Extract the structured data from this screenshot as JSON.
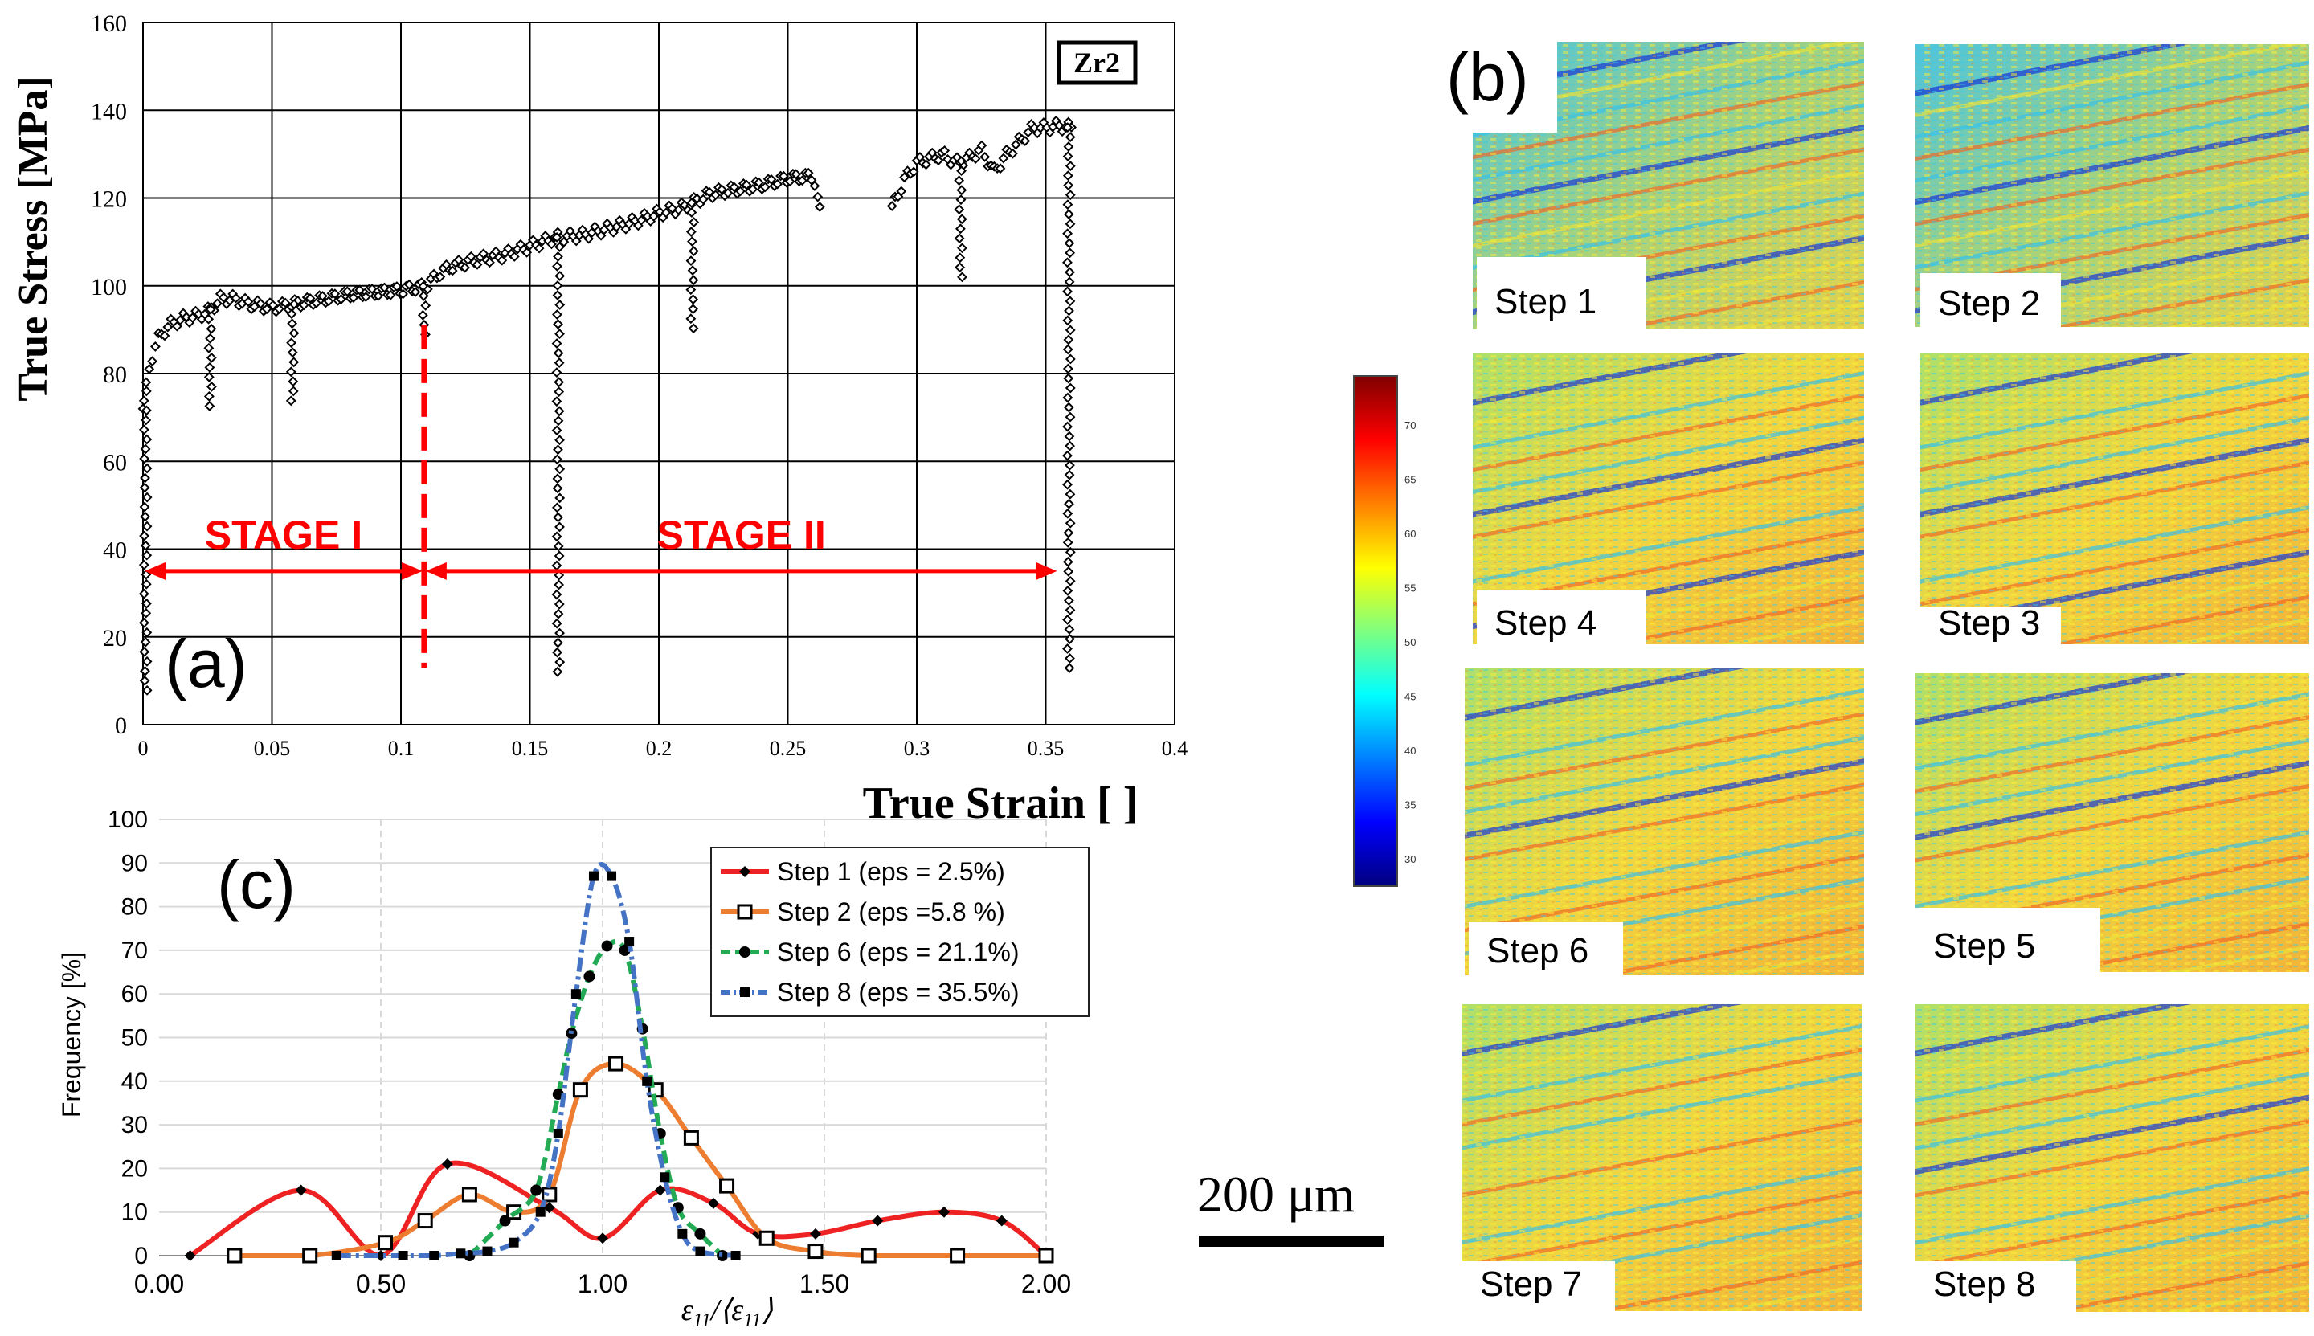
{
  "chart_data": [
    {
      "panel": "(a)",
      "type": "scatter",
      "xlabel": "True Strain [ ]",
      "ylabel": "True Stress [MPa]",
      "xlim": [
        0,
        0.4
      ],
      "ylim": [
        0,
        160
      ],
      "xticks": [
        0,
        0.05,
        0.1,
        0.15,
        0.2,
        0.25,
        0.3,
        0.35,
        0.4
      ],
      "xtick_labels": [
        "0",
        "0.05",
        "0.1",
        "0.15",
        "0.2",
        "0.25",
        "0.3",
        "0.35",
        "0.4"
      ],
      "yticks": [
        0,
        20,
        40,
        60,
        80,
        100,
        120,
        140,
        160
      ],
      "ytick_labels": [
        "0",
        "20",
        "40",
        "60",
        "80",
        "100",
        "120",
        "140",
        "160"
      ],
      "grid": true,
      "legend_box": "Zr2",
      "curve": {
        "x": [
          0.0,
          0.002,
          0.004,
          0.006,
          0.01,
          0.015,
          0.02,
          0.025,
          0.03,
          0.035,
          0.04,
          0.05,
          0.06,
          0.07,
          0.08,
          0.09,
          0.1,
          0.105,
          0.11,
          0.115,
          0.12,
          0.13,
          0.14,
          0.15,
          0.16,
          0.17,
          0.18,
          0.19,
          0.2,
          0.21,
          0.22,
          0.23,
          0.24,
          0.25,
          0.26,
          0.262,
          0.29,
          0.295,
          0.3,
          0.305,
          0.31,
          0.315,
          0.32,
          0.325,
          0.33,
          0.335,
          0.34,
          0.345,
          0.35,
          0.355,
          0.36
        ],
        "y": [
          72,
          80,
          85,
          88,
          91,
          92.5,
          93,
          94,
          97,
          97,
          96,
          95,
          96,
          97,
          98,
          98.5,
          99,
          99.5,
          100,
          103,
          104.5,
          106,
          107,
          109,
          111,
          111.5,
          113,
          114.5,
          116.5,
          118,
          121,
          122,
          123,
          124.5,
          125,
          118,
          117,
          124,
          128,
          129,
          130,
          128,
          129,
          131,
          126,
          130,
          133,
          136,
          136,
          136.5,
          136
        ]
      },
      "drops": [
        {
          "x": 0.001,
          "y_min": 7
        },
        {
          "x": 0.026,
          "y_min": 72
        },
        {
          "x": 0.058,
          "y_min": 73
        },
        {
          "x": 0.109,
          "y_min": 87
        },
        {
          "x": 0.161,
          "y_min": 10
        },
        {
          "x": 0.213,
          "y_min": 89
        },
        {
          "x": 0.263,
          "y_min": 117
        },
        {
          "x": 0.317,
          "y_min": 101
        },
        {
          "x": 0.359,
          "y_min": 11
        }
      ],
      "stage_divider_x": 0.109,
      "stages": [
        {
          "label": "STAGE I",
          "x_from": 0.0,
          "x_to": 0.109,
          "y": 35
        },
        {
          "label": "STAGE II",
          "x_from": 0.109,
          "x_to": 0.355,
          "y": 35
        }
      ],
      "accent_color": "#ff0000"
    },
    {
      "panel": "(c)",
      "type": "line",
      "xlabel": "ε11/⟨ε11⟩",
      "ylabel": "Frequency [%]",
      "xlim": [
        0,
        2
      ],
      "ylim": [
        0,
        100
      ],
      "xticks": [
        0,
        0.5,
        1,
        1.5,
        2
      ],
      "xtick_labels": [
        "0.00",
        "0.50",
        "1.00",
        "1.50",
        "2.00"
      ],
      "yticks": [
        0,
        10,
        20,
        30,
        40,
        50,
        60,
        70,
        80,
        90,
        100
      ],
      "ytick_labels": [
        "0",
        "10",
        "20",
        "30",
        "40",
        "50",
        "60",
        "70",
        "80",
        "90",
        "100"
      ],
      "grid": true,
      "legend_position": "top-right",
      "series": [
        {
          "name": "Step 1 (eps = 2.5%)",
          "color": "#ee2222",
          "marker": "diamond",
          "dash": "solid",
          "x": [
            0.07,
            0.32,
            0.5,
            0.65,
            0.88,
            1.0,
            1.13,
            1.25,
            1.35,
            1.48,
            1.62,
            1.77,
            1.9,
            2.0
          ],
          "y": [
            0,
            15,
            0,
            21,
            11,
            4,
            15,
            12,
            5,
            5,
            8,
            10,
            8,
            0
          ]
        },
        {
          "name": "Step 2 (eps =5.8 %)",
          "color": "#ed7d31",
          "marker": "square-open",
          "dash": "solid",
          "x": [
            0.17,
            0.34,
            0.51,
            0.6,
            0.7,
            0.8,
            0.88,
            0.95,
            1.03,
            1.12,
            1.2,
            1.28,
            1.37,
            1.48,
            1.6,
            1.8,
            2.0
          ],
          "y": [
            0,
            0,
            3,
            8,
            14,
            10,
            14,
            38,
            44,
            38,
            27,
            16,
            4,
            1,
            0,
            0,
            0
          ]
        },
        {
          "name": "Step 6 (eps = 21.1%)",
          "color": "#22aa55",
          "marker": "circle",
          "dash": "dashed",
          "x": [
            0.7,
            0.78,
            0.85,
            0.9,
            0.93,
            0.97,
            1.01,
            1.05,
            1.09,
            1.13,
            1.17,
            1.22,
            1.27
          ],
          "y": [
            0,
            8,
            15,
            37,
            51,
            64,
            71,
            70,
            52,
            28,
            11,
            5,
            0
          ]
        },
        {
          "name": "Step 8 (eps = 35.5%)",
          "color": "#4472c4",
          "marker": "square",
          "dash": "dashdot",
          "x": [
            0.4,
            0.55,
            0.62,
            0.68,
            0.74,
            0.8,
            0.86,
            0.9,
            0.94,
            0.98,
            1.02,
            1.06,
            1.1,
            1.14,
            1.18,
            1.22,
            1.3
          ],
          "y": [
            0,
            0,
            0,
            0.5,
            1,
            3,
            10,
            28,
            60,
            87,
            87,
            72,
            40,
            18,
            5,
            1,
            0
          ]
        }
      ]
    }
  ],
  "panel_b": {
    "label": "(b)",
    "steps": [
      "Step 1",
      "Step 2",
      "Step 4",
      "Step 3",
      "Step 6",
      "Step 5",
      "Step 7",
      "Step 8"
    ],
    "colorbar": {
      "ticks": [
        "70",
        "65",
        "60",
        "55",
        "50",
        "45",
        "40",
        "35",
        "30"
      ],
      "colormap": "jet"
    },
    "scale_bar": {
      "label": "200 μm"
    }
  }
}
